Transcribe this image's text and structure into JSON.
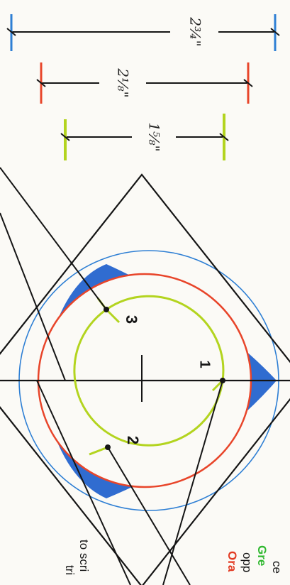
{
  "dimensions": {
    "blue": "2¾\"",
    "orange": "2⅛\"",
    "green": "1⅝\""
  },
  "labels": {
    "one": "1",
    "two": "2",
    "three": "3"
  },
  "side_text": {
    "line1": "ce",
    "line2_green": "Gre",
    "line3": "opp",
    "line4_orange": "Ora",
    "line5": "to scri",
    "line6": "tri"
  },
  "colors": {
    "blue": "#2e7fd4",
    "blue_fill": "#1e5fcc",
    "orange": "#e8452a",
    "green": "#b3d41f",
    "green_text": "#2fb82f",
    "orange_text": "#e23a22",
    "ink": "#151515"
  }
}
